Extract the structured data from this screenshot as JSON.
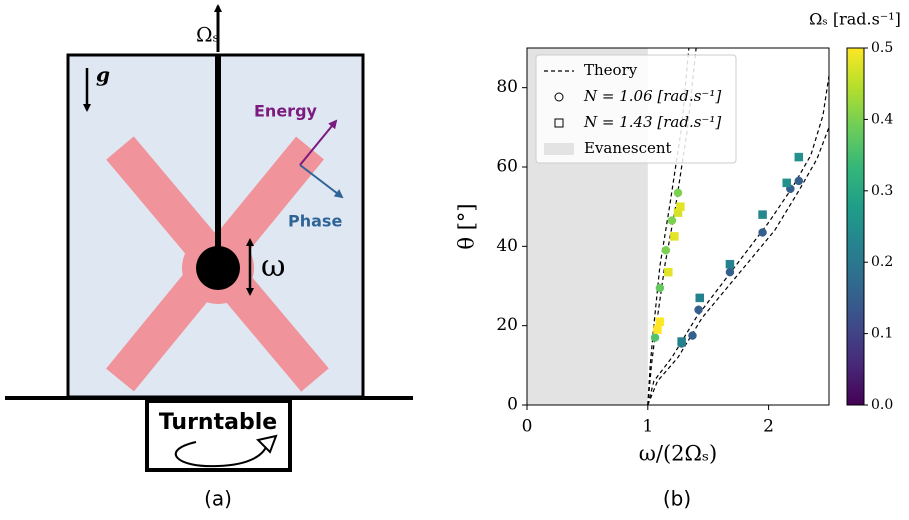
{
  "panel_a": {
    "label": "(a)",
    "rotation": "Ωₛ",
    "gravity": "g",
    "energy": "Energy",
    "phase": "Phase",
    "frequency": "ω",
    "turntable": "Turntable"
  },
  "chart_data": {
    "type": "scatter",
    "label": "(b)",
    "xlabel": "ω/(2Ωₛ)",
    "ylabel": "θ [°]",
    "xlim": [
      0,
      2.5
    ],
    "xticks": [
      0,
      1,
      2
    ],
    "ylim": [
      0,
      90
    ],
    "yticks": [
      0,
      20,
      40,
      60,
      80
    ],
    "legend": "upper left",
    "evanescent": {
      "name": "Evanescent",
      "xlim": [
        0,
        1
      ],
      "color": "#e3e3e3"
    },
    "theory": {
      "name": "Theory",
      "color": "#000000",
      "curves": [
        {
          "x": [
            1,
            1.02,
            1.05,
            1.1,
            1.18,
            1.28,
            1.34
          ],
          "y": [
            0,
            10,
            20,
            35,
            50,
            70,
            90
          ]
        },
        {
          "x": [
            1,
            1.03,
            1.07,
            1.14,
            1.23,
            1.33,
            1.4
          ],
          "y": [
            0,
            10,
            20,
            35,
            50,
            70,
            90
          ]
        },
        {
          "x": [
            1,
            1.05,
            1.2,
            1.4,
            1.7,
            2.0,
            2.2,
            2.35,
            2.45,
            2.5
          ],
          "y": [
            0,
            6,
            12,
            22,
            34,
            46,
            55,
            63,
            73,
            83
          ]
        },
        {
          "x": [
            1,
            1.08,
            1.25,
            1.45,
            1.75,
            2.05,
            2.25,
            2.4,
            2.5
          ],
          "y": [
            0,
            6,
            12,
            22,
            33,
            44,
            54,
            62,
            70
          ]
        }
      ]
    },
    "series": [
      {
        "name": "N = 1.06 [rad.s⁻¹]",
        "marker": "circle",
        "x": [
          1.06,
          1.1,
          1.15,
          1.2,
          1.25,
          1.28,
          1.37,
          1.42,
          1.68,
          1.95,
          2.18,
          2.25
        ],
        "y": [
          17,
          29.5,
          39,
          46.5,
          53.5,
          15.5,
          17.5,
          24,
          33.5,
          43.5,
          54.5,
          56.5
        ],
        "c": [
          0.36,
          0.38,
          0.4,
          0.4,
          0.4,
          0.2,
          0.15,
          0.15,
          0.15,
          0.15,
          0.15,
          0.15
        ]
      },
      {
        "name": "N = 1.43 [rad.s⁻¹]",
        "marker": "square",
        "x": [
          1.08,
          1.1,
          1.17,
          1.22,
          1.25,
          1.27,
          1.28,
          1.43,
          1.68,
          1.95,
          2.15,
          2.25
        ],
        "y": [
          19,
          21,
          33.5,
          42.5,
          48.5,
          50,
          16,
          27,
          35.5,
          48,
          56,
          62.5
        ],
        "c": [
          0.5,
          0.5,
          0.48,
          0.48,
          0.47,
          0.48,
          0.22,
          0.22,
          0.22,
          0.23,
          0.25,
          0.25
        ]
      }
    ],
    "colorbar": {
      "label": "Ωₛ [rad.s⁻¹]",
      "colormap": "viridis",
      "lim": [
        0,
        0.5
      ],
      "ticks": [
        {
          "value": 0,
          "label": "0.0"
        },
        0.1,
        0.2,
        0.3,
        0.4,
        0.5
      ]
    }
  }
}
